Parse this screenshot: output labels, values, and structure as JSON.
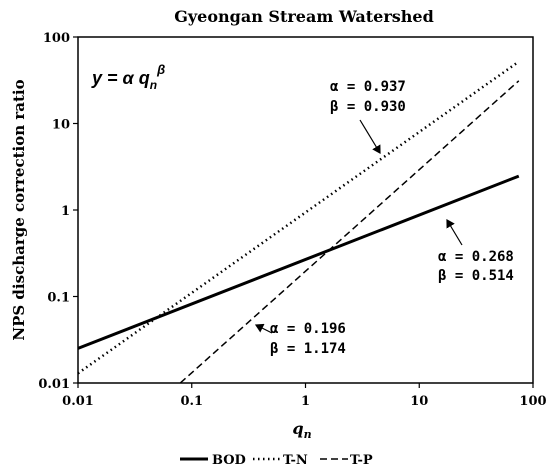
{
  "chart_data": {
    "type": "line",
    "title": "Gyeongan Stream Watershed",
    "xlabel": "q",
    "xlabel_subscript": "n",
    "ylabel": "NPS discharge correction ratio",
    "x_scale": "log",
    "y_scale": "log",
    "xlim": [
      0.01,
      100
    ],
    "ylim": [
      0.01,
      100
    ],
    "x_ticks": [
      "0.01",
      "0.1",
      "1",
      "10",
      "100"
    ],
    "y_ticks": [
      "0.01",
      "0.1",
      "1",
      "10",
      "100"
    ],
    "grid": false,
    "legend_position": "bottom",
    "equation": {
      "y": "y",
      "alpha": "α",
      "q": "q",
      "q_sub": "n",
      "beta": "β"
    },
    "series": [
      {
        "name": "BOD",
        "style": "solid",
        "alpha": 0.268,
        "beta": 0.514,
        "x": [
          0.01,
          75
        ],
        "label_lines": [
          "α = 0.268",
          "β = 0.514"
        ]
      },
      {
        "name": "T-N",
        "style": "dotted",
        "alpha": 0.937,
        "beta": 0.93,
        "x": [
          0.01,
          75
        ],
        "label_lines": [
          "α = 0.937",
          "β = 0.930"
        ]
      },
      {
        "name": "T-P",
        "style": "dashed",
        "alpha": 0.196,
        "beta": 1.174,
        "x": [
          0.01,
          75
        ],
        "label_lines": [
          "α = 0.196",
          "β = 1.174"
        ]
      }
    ]
  }
}
